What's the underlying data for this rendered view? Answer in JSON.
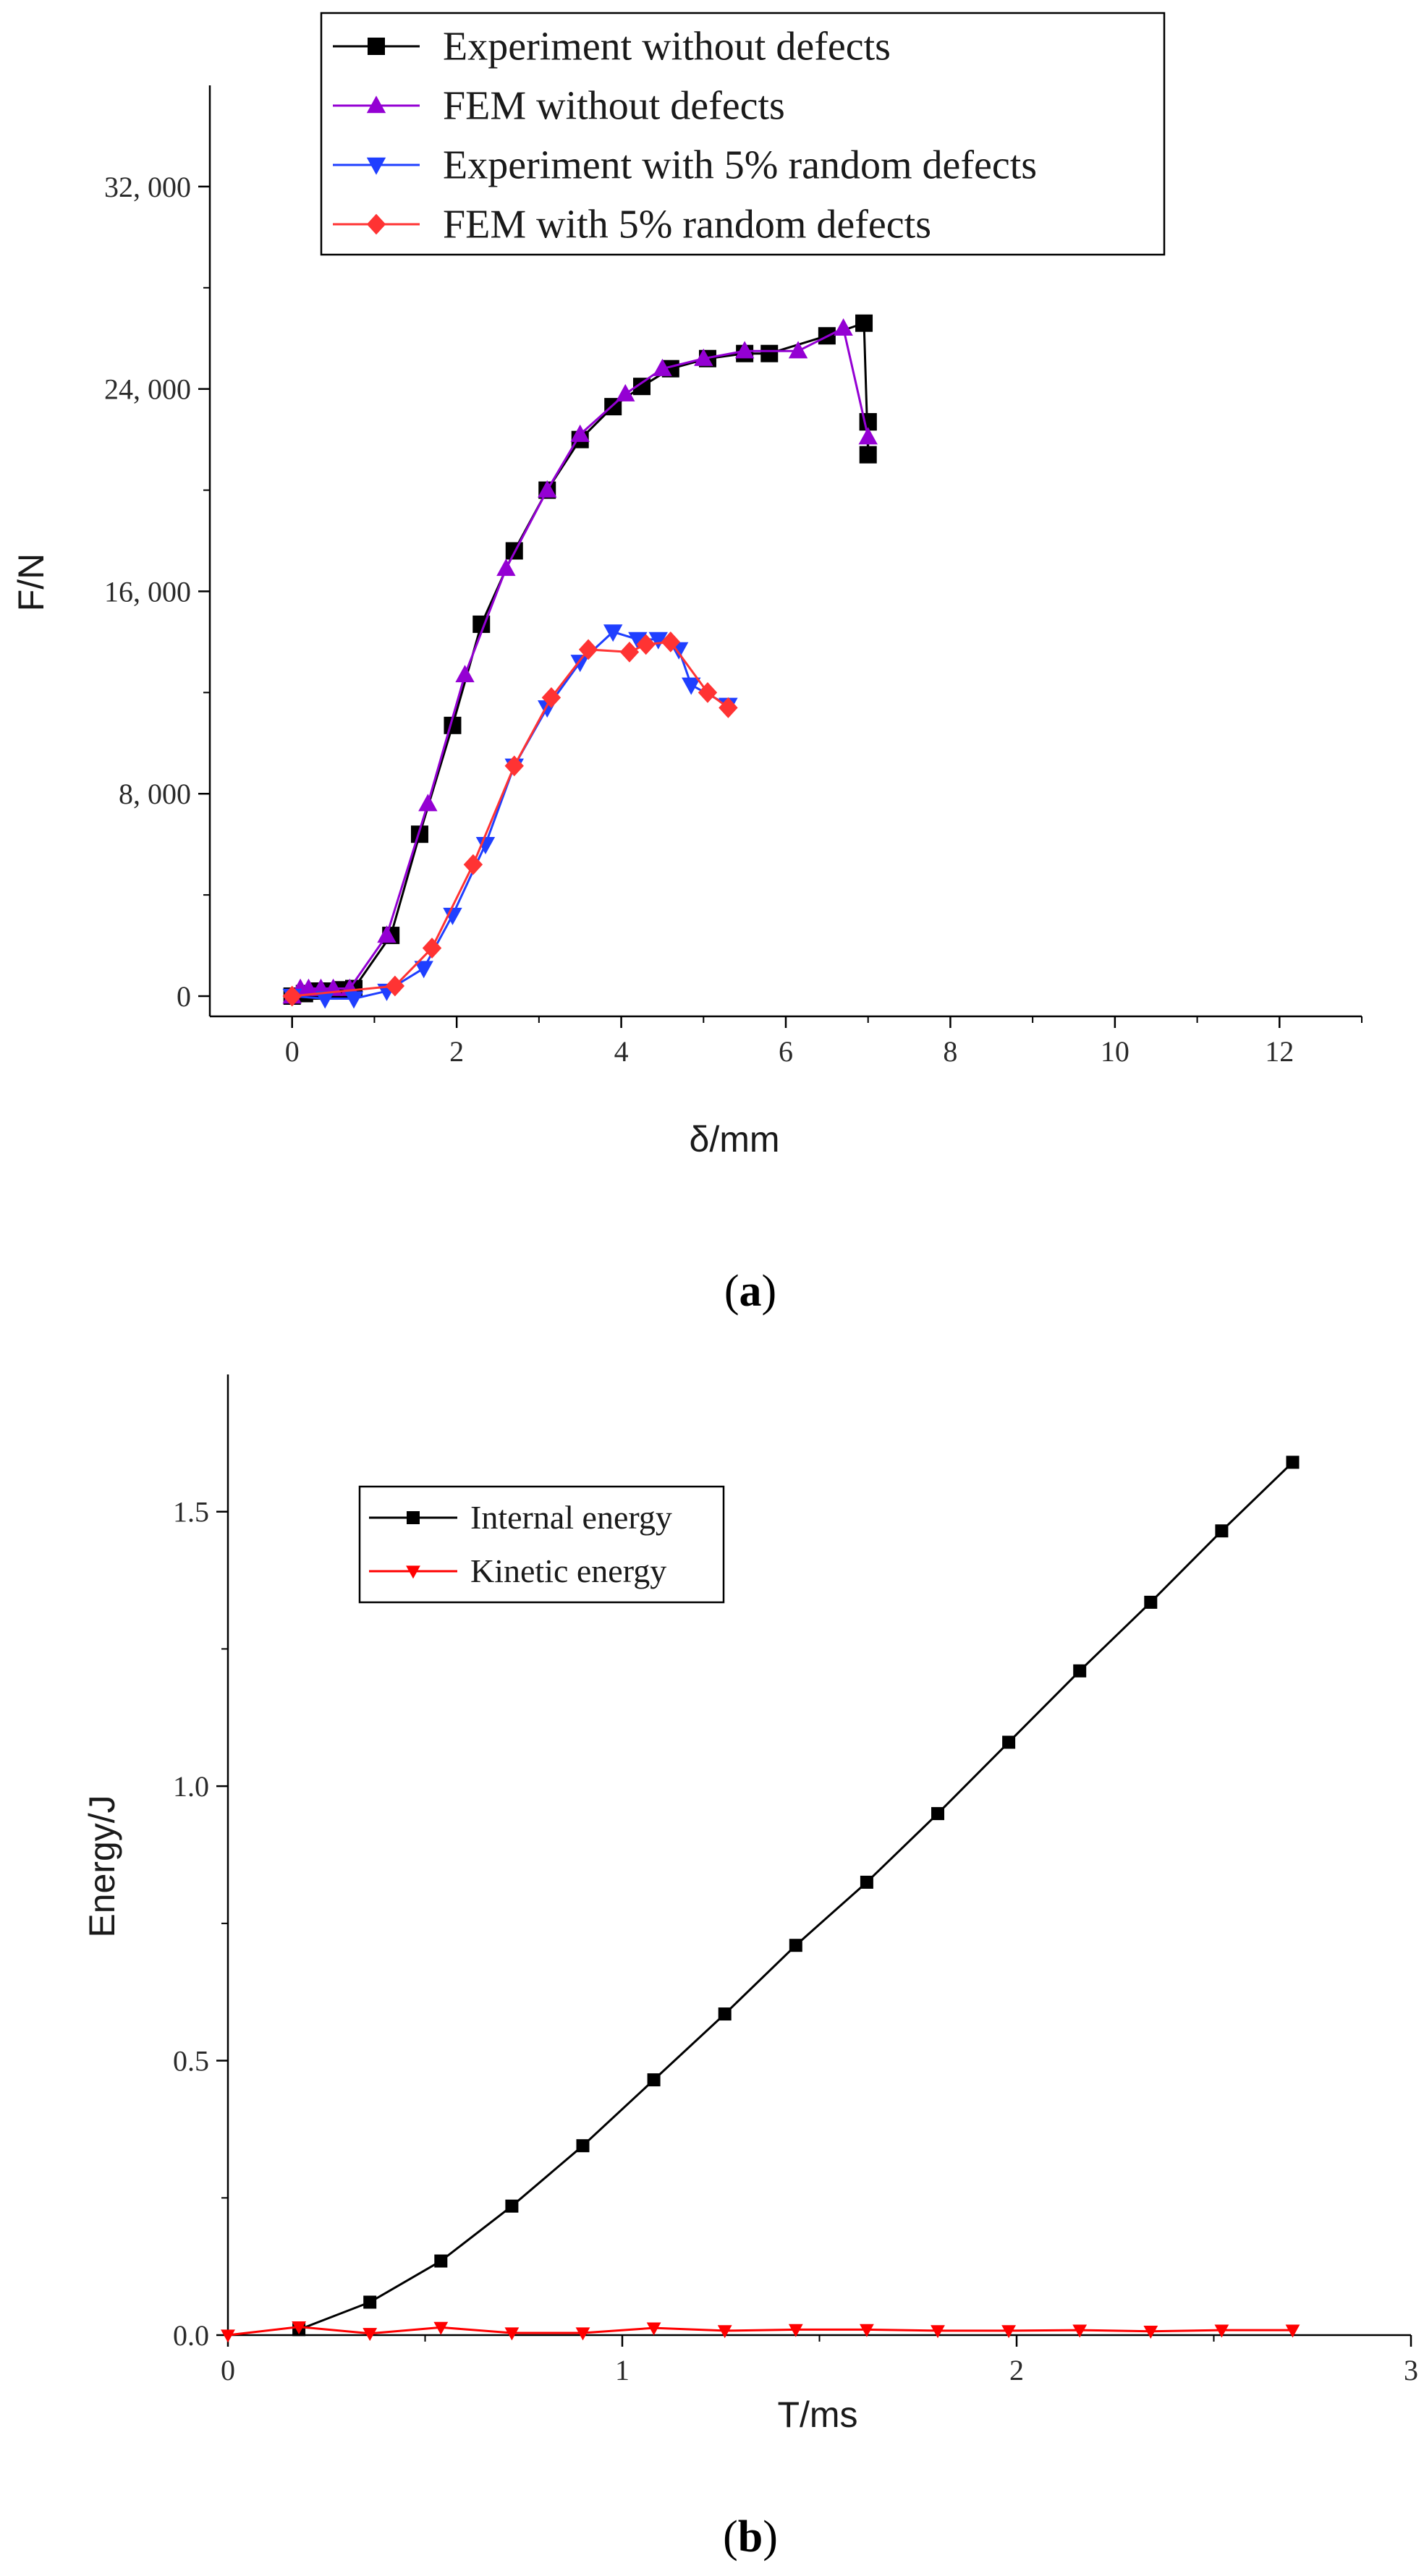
{
  "figure": {
    "captions": [
      {
        "open": "(",
        "letter": "a",
        "close": ")"
      },
      {
        "open": "(",
        "letter": "b",
        "close": ")"
      }
    ]
  },
  "chart_data": [
    {
      "type": "line",
      "xlabel": "δ/mm",
      "ylabel": "F/N",
      "xlim": [
        -1,
        13
      ],
      "ylim": [
        -800,
        36000
      ],
      "xticks": [
        0,
        2,
        4,
        6,
        8,
        10,
        12
      ],
      "xtick_labels": [
        "0",
        "2",
        "4",
        "6",
        "8",
        "10",
        "12"
      ],
      "yticks": [
        0,
        8000,
        16000,
        24000,
        32000
      ],
      "ytick_labels": [
        "0",
        "8, 000",
        "16, 000",
        "24, 000",
        "32, 000"
      ],
      "legend_position": "top-center",
      "series": [
        {
          "name": "Experiment without defects",
          "color": "#000000",
          "marker": "square",
          "x": [
            0,
            0.15,
            0.3,
            0.45,
            0.6,
            0.75,
            1.2,
            1.55,
            1.95,
            2.3,
            2.7,
            3.1,
            3.5,
            3.9,
            4.25,
            4.6,
            5.05,
            5.5,
            5.8,
            6.5,
            6.95,
            7.0,
            7.0,
            7.0
          ],
          "y": [
            0,
            100,
            200,
            200,
            250,
            300,
            2400,
            6400,
            10700,
            14700,
            17600,
            20000,
            22000,
            23300,
            24100,
            24800,
            25200,
            25400,
            25400,
            26100,
            26600,
            21400,
            22700,
            22700
          ]
        },
        {
          "name": "FEM without defects",
          "color": "#9400D3",
          "marker": "triangle-up",
          "x": [
            0,
            0.1,
            0.2,
            0.35,
            0.5,
            0.7,
            1.15,
            1.65,
            2.1,
            2.6,
            3.1,
            3.5,
            4.05,
            4.5,
            5.0,
            5.5,
            6.15,
            6.7,
            7.0
          ],
          "y": [
            0,
            300,
            300,
            300,
            300,
            300,
            2400,
            7600,
            12700,
            16900,
            20000,
            22200,
            23800,
            24800,
            25200,
            25500,
            25500,
            26400,
            22100
          ]
        },
        {
          "name": "Experiment with 5% random defects",
          "color": "#1F3FFF",
          "marker": "triangle-down",
          "x": [
            0,
            0.4,
            0.75,
            1.15,
            1.6,
            1.95,
            2.35,
            2.7,
            3.1,
            3.5,
            3.9,
            4.2,
            4.45,
            4.7,
            4.85,
            5.3
          ],
          "y": [
            0,
            -100,
            -100,
            200,
            1100,
            3200,
            6000,
            9100,
            11400,
            13200,
            14400,
            14100,
            14100,
            13700,
            12300,
            11500
          ]
        },
        {
          "name": "FEM with 5% random defects",
          "color": "#FF3333",
          "marker": "diamond",
          "x": [
            0,
            1.25,
            1.7,
            2.2,
            2.7,
            3.15,
            3.6,
            4.1,
            4.3,
            4.6,
            5.05,
            5.3
          ],
          "y": [
            0,
            400,
            1900,
            5200,
            9100,
            11800,
            13700,
            13600,
            13900,
            14000,
            12000,
            11400
          ]
        }
      ]
    },
    {
      "type": "line",
      "xlabel": "T/ms",
      "ylabel": "Energy/J",
      "xlim": [
        0,
        3
      ],
      "ylim": [
        0,
        1.75
      ],
      "xticks": [
        0,
        1,
        2,
        3
      ],
      "xtick_labels": [
        "0",
        "1",
        "2",
        "3"
      ],
      "yticks": [
        0,
        0.5,
        1.0,
        1.5
      ],
      "ytick_labels": [
        "0.0",
        "0.5",
        "1.0",
        "1.5"
      ],
      "legend_position": "top-left",
      "series": [
        {
          "name": "Internal energy",
          "color": "#000000",
          "marker": "square",
          "x": [
            0.18,
            0.36,
            0.54,
            0.72,
            0.9,
            1.08,
            1.26,
            1.44,
            1.62,
            1.8,
            1.98,
            2.16,
            2.34,
            2.52,
            2.7
          ],
          "y": [
            0.01,
            0.06,
            0.135,
            0.235,
            0.345,
            0.465,
            0.585,
            0.71,
            0.825,
            0.95,
            1.08,
            1.21,
            1.335,
            1.465,
            1.59
          ]
        },
        {
          "name": "Kinetic energy",
          "color": "#FF0000",
          "marker": "triangle-down",
          "x": [
            0,
            0.18,
            0.36,
            0.54,
            0.72,
            0.9,
            1.08,
            1.26,
            1.44,
            1.62,
            1.8,
            1.98,
            2.16,
            2.34,
            2.52,
            2.7
          ],
          "y": [
            0.0,
            0.015,
            0.003,
            0.014,
            0.004,
            0.004,
            0.013,
            0.008,
            0.01,
            0.01,
            0.008,
            0.008,
            0.009,
            0.007,
            0.009,
            0.009
          ]
        }
      ]
    }
  ]
}
